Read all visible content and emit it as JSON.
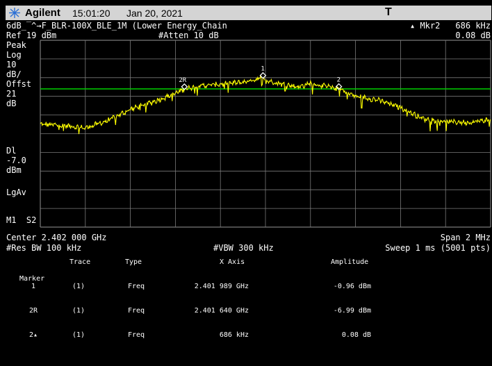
{
  "titlebar": {
    "brand": "Agilent",
    "time": "15:01:20",
    "date": "Jan 20, 2021",
    "trigger_flag": "T"
  },
  "status": {
    "title": "6dB_‾^→F_BLR-100X_BLE_1M (Lower Energy_Chain",
    "marker_readout_label": "▴ Mkr2",
    "marker_readout_freq": "686 kHz",
    "marker_readout_amp": "0.08 dB",
    "ref_level": "Ref 19 dBm",
    "atten": "#Atten 10 dB"
  },
  "left_panel": {
    "lines": [
      "Peak",
      "Log",
      "10",
      "dB/",
      "Offst",
      "21",
      "dB"
    ],
    "dl_lines": [
      "Dl",
      "-7.0",
      "dBm"
    ],
    "lgav": "LgAv",
    "m1s2": "M1  S2"
  },
  "bottom": {
    "center": "Center 2.402 000 GHz",
    "span": "Span 2 MHz",
    "rbw": "#Res BW 100 kHz",
    "vbw": "#VBW 300 kHz",
    "sweep": "Sweep 1 ms (5001 pts)"
  },
  "marker_table": {
    "headers": {
      "marker": "Marker",
      "trace": "Trace",
      "type": "Type",
      "xaxis": "X Axis",
      "amplitude": "Amplitude"
    },
    "rows": [
      {
        "marker": "1",
        "trace": "(1)",
        "type": "Freq",
        "x": "2.401 989 GHz",
        "amp": "-0.96 dBm"
      },
      {
        "marker": "2R",
        "trace": "(1)",
        "type": "Freq",
        "x": "2.401 640 GHz",
        "amp": "-6.99 dBm"
      },
      {
        "marker": "2▴",
        "trace": "(1)",
        "type": "Freq",
        "x": "686 kHz",
        "amp": "0.08 dB"
      }
    ]
  },
  "display": {
    "trace_color": "#ffff00",
    "display_line_color": "#00d000",
    "grid_color": "#7a7a7a",
    "marker_labels": [
      "1",
      "2R",
      "2"
    ]
  },
  "chart_data": {
    "type": "line",
    "x_range_mhz": [
      2401.0,
      2403.0
    ],
    "y_range_dbm": [
      19,
      -81
    ],
    "display_line_dbm": -7.0,
    "series": [
      {
        "x_mhz": [
          2401.0,
          2401.1,
          2401.2,
          2401.3,
          2401.4,
          2401.5,
          2401.6,
          2401.64,
          2401.7,
          2401.8,
          2401.9,
          2401.989,
          2402.0,
          2402.1,
          2402.15,
          2402.2,
          2402.3,
          2402.326,
          2402.4,
          2402.5,
          2402.6,
          2402.7,
          2402.8,
          2402.9,
          2403.0
        ],
        "amp_dbm": [
          -26,
          -26.5,
          -28,
          -24,
          -18,
          -14,
          -9.5,
          -7,
          -5.5,
          -4.5,
          -3.5,
          -1,
          -2.5,
          -5,
          -6,
          -4,
          -6.5,
          -7,
          -11,
          -13,
          -17,
          -23,
          -24.5,
          -25,
          -23.5
        ]
      }
    ],
    "markers": [
      {
        "label": "1",
        "x_mhz": 2401.989,
        "amp_dbm": -0.96
      },
      {
        "label": "2R",
        "x_mhz": 2401.64,
        "amp_dbm": -6.99
      },
      {
        "label": "2",
        "x_mhz": 2402.326,
        "amp_dbm": -6.91
      }
    ]
  }
}
